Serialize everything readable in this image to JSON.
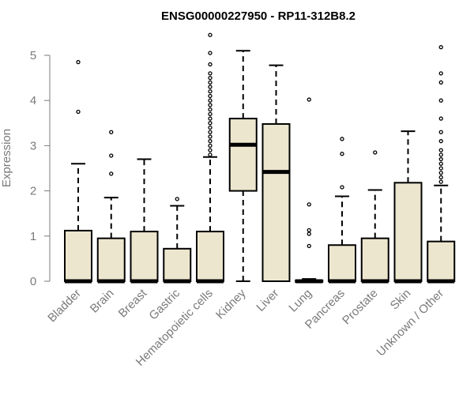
{
  "chart_data": {
    "type": "box",
    "title": "ENSG00000227950 - RP11-312B8.2",
    "xlabel": "",
    "ylabel": "Expression",
    "ylim": [
      0,
      5.5
    ],
    "yticks": [
      0,
      1,
      2,
      3,
      4,
      5
    ],
    "grid": false,
    "box_fill": "#ede6cf",
    "box_stroke": "#000000",
    "categories": [
      "Bladder",
      "Brain",
      "Breast",
      "Gastric",
      "Hematopoietic cells",
      "Kidney",
      "Liver",
      "Lung",
      "Pancreas",
      "Prostate",
      "Skin",
      "Unknown / Other"
    ],
    "series": [
      {
        "category": "Bladder",
        "min": 0,
        "q1": 0,
        "median": 0,
        "q3": 1.12,
        "max": 2.6,
        "outliers": [
          3.75,
          4.85
        ]
      },
      {
        "category": "Brain",
        "min": 0,
        "q1": 0,
        "median": 0,
        "q3": 0.95,
        "max": 1.85,
        "outliers": [
          2.38,
          2.78,
          3.3
        ]
      },
      {
        "category": "Breast",
        "min": 0,
        "q1": 0,
        "median": 0,
        "q3": 1.1,
        "max": 2.7,
        "outliers": []
      },
      {
        "category": "Gastric",
        "min": 0,
        "q1": 0,
        "median": 0,
        "q3": 0.72,
        "max": 1.67,
        "outliers": [
          1.82
        ]
      },
      {
        "category": "Hematopoietic cells",
        "min": 0,
        "q1": 0,
        "median": 0,
        "q3": 1.1,
        "max": 2.75,
        "outliers": [
          2.8,
          2.9,
          3.0,
          3.1,
          3.2,
          3.3,
          3.4,
          3.5,
          3.6,
          3.7,
          3.8,
          3.9,
          4.0,
          4.1,
          4.2,
          4.3,
          4.4,
          4.5,
          4.6,
          4.8,
          5.05,
          5.45
        ]
      },
      {
        "category": "Kidney",
        "min": 0,
        "q1": 2.0,
        "median": 3.02,
        "q3": 3.6,
        "max": 5.1,
        "outliers": []
      },
      {
        "category": "Liver",
        "min": 0,
        "q1": 0,
        "median": 2.42,
        "q3": 3.48,
        "max": 4.78,
        "outliers": []
      },
      {
        "category": "Lung",
        "min": 0,
        "q1": 0,
        "median": 0,
        "q3": 0.02,
        "max": 0.05,
        "outliers": [
          0.78,
          1.05,
          1.13,
          1.7,
          4.02
        ]
      },
      {
        "category": "Pancreas",
        "min": 0,
        "q1": 0,
        "median": 0,
        "q3": 0.8,
        "max": 1.88,
        "outliers": [
          2.08,
          2.82,
          3.15
        ]
      },
      {
        "category": "Prostate",
        "min": 0,
        "q1": 0,
        "median": 0,
        "q3": 0.95,
        "max": 2.02,
        "outliers": [
          2.85
        ]
      },
      {
        "category": "Skin",
        "min": 0,
        "q1": 0,
        "median": 0,
        "q3": 2.18,
        "max": 3.32,
        "outliers": []
      },
      {
        "category": "Unknown / Other",
        "min": 0,
        "q1": 0,
        "median": 0,
        "q3": 0.88,
        "max": 2.12,
        "outliers": [
          2.2,
          2.3,
          2.4,
          2.5,
          2.6,
          2.7,
          2.8,
          2.9,
          3.1,
          3.3,
          3.6,
          4.0,
          4.4,
          4.6,
          5.18
        ]
      }
    ]
  }
}
